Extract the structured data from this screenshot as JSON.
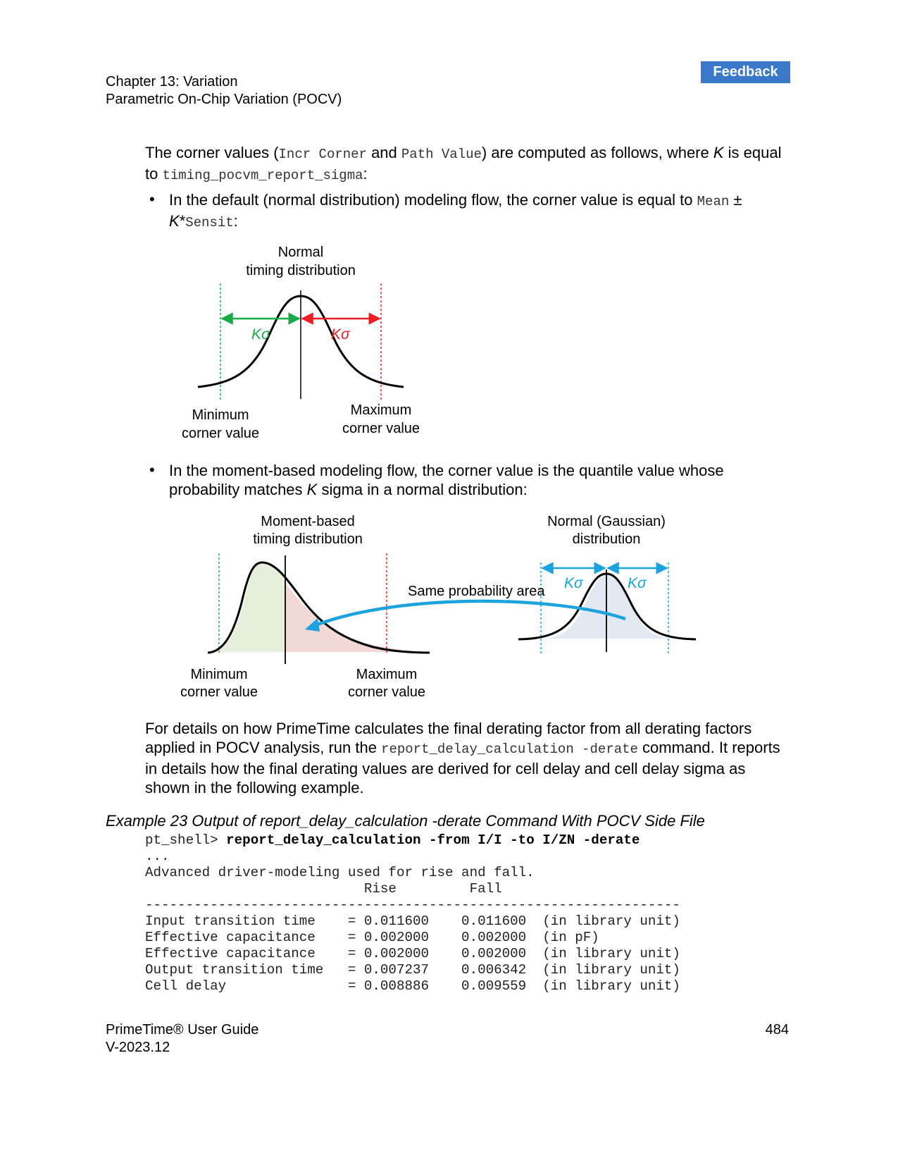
{
  "header": {
    "feedback_label": "Feedback",
    "chapter": "Chapter 13: Variation",
    "section": "Parametric On-Chip Variation (POCV)"
  },
  "intro": {
    "t1": "The corner values (",
    "code1": "Incr Corner",
    "t2": " and ",
    "code2": "Path Value",
    "t3": ") are computed as follows, where ",
    "k": "K",
    "t4": " is equal to ",
    "code3": "timing_pocvm_report_sigma",
    "t5": ":"
  },
  "bullet1": {
    "dot": "•",
    "t1": "In the default (normal distribution) modeling flow, the corner value is equal to ",
    "code1": "Mean",
    "t2": " ± ",
    "k": "K",
    "t3": "*",
    "code2": "Sensit",
    "t4": ":"
  },
  "figure1": {
    "title_line1": "Normal",
    "title_line2": "timing distribution",
    "left_sigma": "Kσ",
    "right_sigma": "Kσ",
    "min_line1": "Minimum",
    "min_line2": "corner value",
    "max_line1": "Maximum",
    "max_line2": "corner value",
    "colors": {
      "min": "#1aaa4a",
      "max": "#ee1c25"
    }
  },
  "bullet2": {
    "dot": "•",
    "t1": "In the moment-based modeling flow, the corner value is the quantile value whose probability matches ",
    "k": "K",
    "t2": " sigma in a normal distribution:"
  },
  "figure2": {
    "left_title_line1": "Moment-based",
    "left_title_line2": "timing distribution",
    "right_title_line1": "Normal (Gaussian)",
    "right_title_line2": "distribution",
    "same_area": "Same probability area",
    "left_sigma": "Kσ",
    "right_sigma": "Kσ",
    "min_line1": "Minimum",
    "min_line2": "corner value",
    "max_line1": "Maximum",
    "max_line2": "corner value",
    "colors": {
      "accent": "#1aa3dd",
      "left_fill": "#e6eedc",
      "right_fill": "#f2d9d6",
      "gauss_fill": "#e3e9f2"
    }
  },
  "details": {
    "t1": "For details on how PrimeTime calculates the final derating factor from all derating factors applied in POCV analysis, run the ",
    "code1": "report_delay_calculation -derate",
    "t2": " command. It reports in details how the final derating values are derived for cell delay and cell delay sigma as shown in the following example."
  },
  "example": {
    "caption": "Example 23   Output of report_delay_calculation -derate Command With POCV Side File",
    "prompt": "pt_shell> ",
    "command": "report_delay_calculation -from I/I -to I/ZN -derate",
    "lines": [
      "...",
      "Advanced driver-modeling used for rise and fall.",
      "                           Rise         Fall",
      "------------------------------------------------------------------",
      "Input transition time    = 0.011600    0.011600  (in library unit)",
      "Effective capacitance    = 0.002000    0.002000  (in pF)",
      "Effective capacitance    = 0.002000    0.002000  (in library unit)",
      "Output transition time   = 0.007237    0.006342  (in library unit)",
      "Cell delay               = 0.008886    0.009559  (in library unit)"
    ]
  },
  "footer": {
    "guide": "PrimeTime® User Guide",
    "version": "V-2023.12",
    "page_number": "484"
  }
}
